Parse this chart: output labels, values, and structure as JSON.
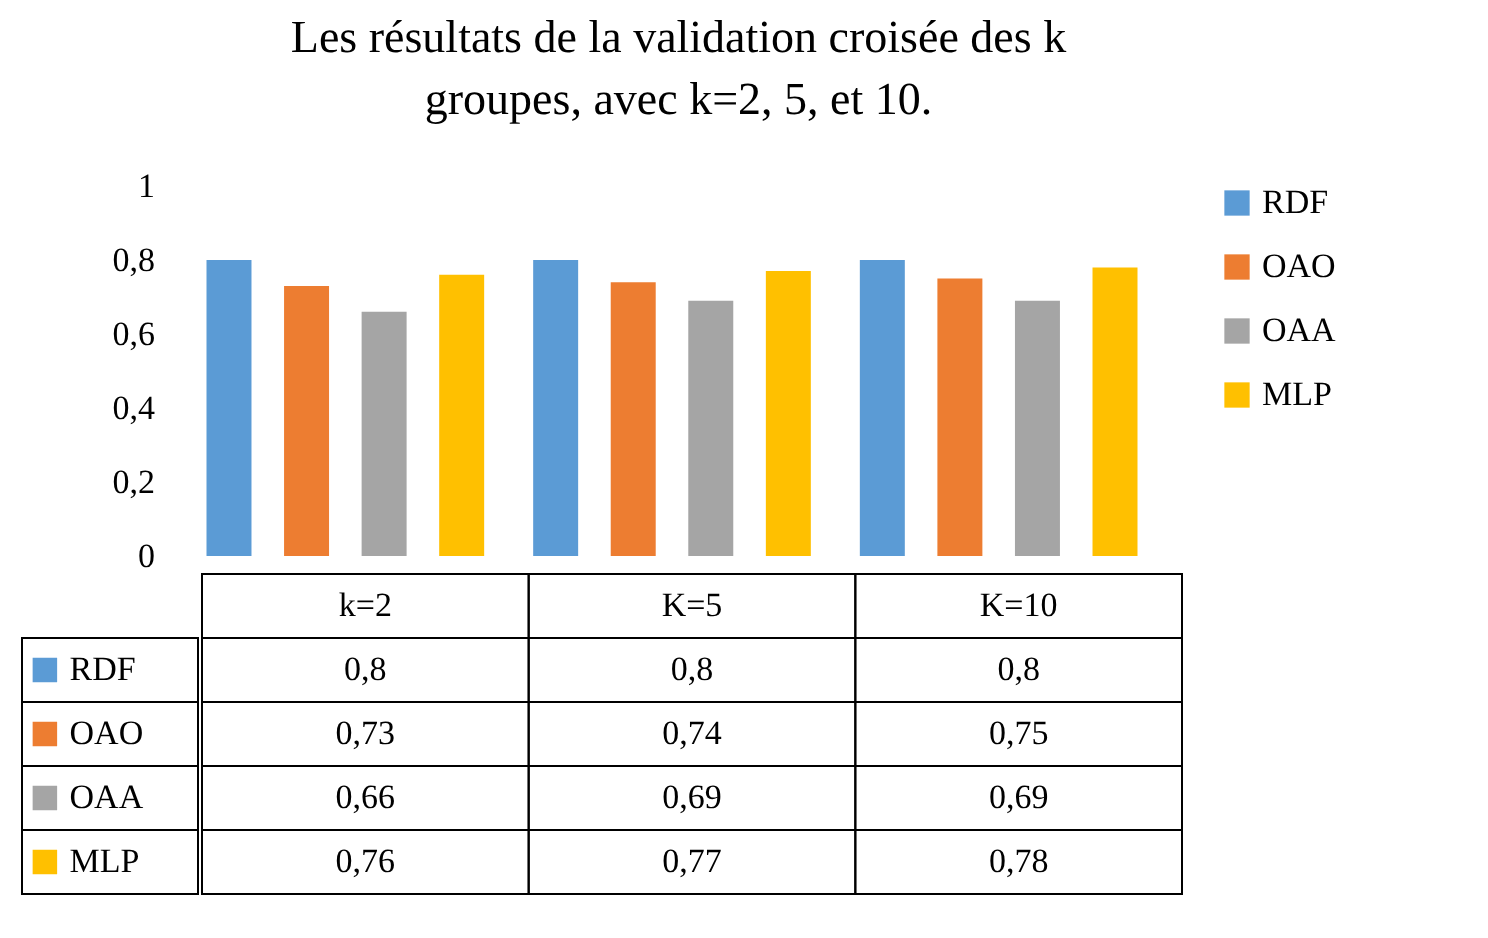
{
  "chart_data": {
    "type": "bar",
    "title": "Les résultats de la validation croisée des k groupes, avec k=2, 5, et 10.",
    "categories": [
      "k=2",
      "K=5",
      "K=10"
    ],
    "series": [
      {
        "name": "RDF",
        "color": "#5b9bd5",
        "values": [
          0.8,
          0.8,
          0.8
        ],
        "value_labels": [
          "0,8",
          "0,8",
          "0,8"
        ]
      },
      {
        "name": "OAO",
        "color": "#ed7d31",
        "values": [
          0.73,
          0.74,
          0.75
        ],
        "value_labels": [
          "0,73",
          "0,74",
          "0,75"
        ]
      },
      {
        "name": "OAA",
        "color": "#a5a5a5",
        "values": [
          0.66,
          0.69,
          0.69
        ],
        "value_labels": [
          "0,66",
          "0,69",
          "0,69"
        ]
      },
      {
        "name": "MLP",
        "color": "#ffc000",
        "values": [
          0.76,
          0.77,
          0.78
        ],
        "value_labels": [
          "0,76",
          "0,77",
          "0,78"
        ]
      }
    ],
    "ylim": [
      0,
      1
    ],
    "yticks": [
      0,
      {
        "value": 0.2,
        "label": "0,2"
      },
      {
        "value": 0.4,
        "label": "0,4"
      },
      {
        "value": 0.6,
        "label": "0,6"
      },
      {
        "value": 0.8,
        "label": "0,8"
      },
      1
    ],
    "legend": "right"
  }
}
